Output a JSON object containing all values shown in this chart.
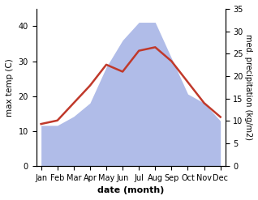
{
  "months": [
    "Jan",
    "Feb",
    "Mar",
    "Apr",
    "May",
    "Jun",
    "Jul",
    "Aug",
    "Sep",
    "Oct",
    "Nov",
    "Dec"
  ],
  "month_indices": [
    0,
    1,
    2,
    3,
    4,
    5,
    6,
    7,
    8,
    9,
    10,
    11
  ],
  "temp": [
    12,
    13,
    18,
    23,
    29,
    27,
    33,
    34,
    30,
    24,
    18,
    14
  ],
  "precip": [
    9,
    9,
    11,
    14,
    22,
    28,
    32,
    32,
    24,
    16,
    14,
    10
  ],
  "temp_color": "#c0392b",
  "precip_color_fill": "#b0bce8",
  "temp_ylim": [
    0,
    45
  ],
  "precip_ylim": [
    0,
    35
  ],
  "temp_yticks": [
    0,
    10,
    20,
    30,
    40
  ],
  "precip_yticks": [
    0,
    5,
    10,
    15,
    20,
    25,
    30,
    35
  ],
  "ylabel_left": "max temp (C)",
  "ylabel_right": "med. precipitation (kg/m2)",
  "xlabel": "date (month)",
  "temp_linewidth": 1.8,
  "background_color": "#ffffff"
}
